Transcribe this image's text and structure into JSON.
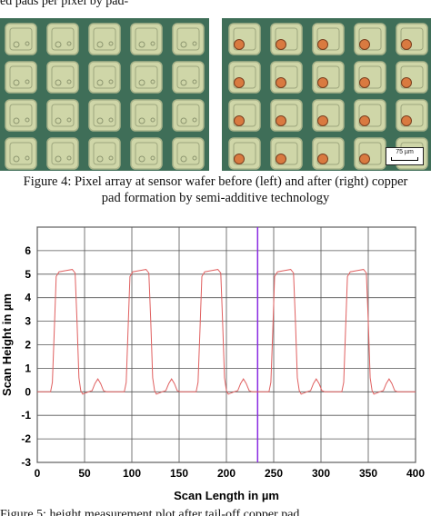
{
  "top_text": "ed pads per pixel by pad-",
  "figure4": {
    "caption_line1": "Figure 4: Pixel array at sensor wafer before (left) and after (right) copper",
    "caption_line2": "pad formation by semi-additive technology",
    "scale_bar_label": "75 µm",
    "colors": {
      "substrate": "#3f6e58",
      "pixel_fill": "#cfd6a8",
      "copper": "#d97a40"
    }
  },
  "figure5_caption_fragment": "Figure 5: height measurement plot after tail-off copper pad",
  "chart_data": {
    "type": "line",
    "xlabel": "Scan Length in µm",
    "ylabel": "Scan Height in µm",
    "xlim": [
      0,
      400
    ],
    "ylim": [
      -3,
      7
    ],
    "x_ticks": [
      0,
      50,
      100,
      150,
      200,
      250,
      300,
      350,
      400
    ],
    "y_ticks": [
      -3,
      -2,
      -1,
      0,
      1,
      2,
      3,
      4,
      5,
      6
    ],
    "grid": true,
    "line_color": "#e06060",
    "marker_line": {
      "x": 233,
      "color": "#8a2be2"
    },
    "series": [
      {
        "values": [
          [
            0,
            0
          ],
          [
            14,
            0
          ],
          [
            16,
            0.4
          ],
          [
            18,
            2.6
          ],
          [
            20,
            4.9
          ],
          [
            23,
            5.1
          ],
          [
            30,
            5.15
          ],
          [
            37,
            5.2
          ],
          [
            40,
            5.05
          ],
          [
            42,
            3.0
          ],
          [
            44,
            0.6
          ],
          [
            46,
            0.05
          ],
          [
            48,
            -0.1
          ],
          [
            54,
            0
          ],
          [
            58,
            0.05
          ],
          [
            61,
            0.35
          ],
          [
            64,
            0.55
          ],
          [
            67,
            0.35
          ],
          [
            70,
            0.05
          ],
          [
            73,
            0
          ],
          [
            92,
            0
          ],
          [
            94,
            0.4
          ],
          [
            96,
            2.6
          ],
          [
            98,
            4.9
          ],
          [
            101,
            5.1
          ],
          [
            108,
            5.15
          ],
          [
            115,
            5.2
          ],
          [
            118,
            5.05
          ],
          [
            120,
            3.0
          ],
          [
            122,
            0.6
          ],
          [
            124,
            0.05
          ],
          [
            126,
            -0.1
          ],
          [
            132,
            0
          ],
          [
            136,
            0.05
          ],
          [
            139,
            0.35
          ],
          [
            142,
            0.55
          ],
          [
            145,
            0.35
          ],
          [
            148,
            0.05
          ],
          [
            151,
            0
          ],
          [
            168,
            0
          ],
          [
            170,
            0.4
          ],
          [
            172,
            2.6
          ],
          [
            174,
            4.9
          ],
          [
            177,
            5.1
          ],
          [
            184,
            5.15
          ],
          [
            191,
            5.2
          ],
          [
            194,
            5.05
          ],
          [
            196,
            3.0
          ],
          [
            198,
            0.6
          ],
          [
            200,
            0.05
          ],
          [
            202,
            -0.1
          ],
          [
            208,
            0
          ],
          [
            212,
            0.05
          ],
          [
            215,
            0.35
          ],
          [
            218,
            0.55
          ],
          [
            221,
            0.35
          ],
          [
            224,
            0.05
          ],
          [
            227,
            0
          ],
          [
            245,
            0
          ],
          [
            247,
            0.4
          ],
          [
            249,
            2.6
          ],
          [
            251,
            4.9
          ],
          [
            254,
            5.1
          ],
          [
            261,
            5.15
          ],
          [
            268,
            5.2
          ],
          [
            271,
            5.05
          ],
          [
            273,
            3.0
          ],
          [
            275,
            0.6
          ],
          [
            277,
            0.05
          ],
          [
            279,
            -0.1
          ],
          [
            285,
            0
          ],
          [
            289,
            0.05
          ],
          [
            292,
            0.35
          ],
          [
            295,
            0.55
          ],
          [
            298,
            0.35
          ],
          [
            301,
            0.05
          ],
          [
            304,
            0
          ],
          [
            322,
            0
          ],
          [
            324,
            0.4
          ],
          [
            326,
            2.6
          ],
          [
            328,
            4.9
          ],
          [
            331,
            5.1
          ],
          [
            338,
            5.15
          ],
          [
            345,
            5.2
          ],
          [
            348,
            5.05
          ],
          [
            350,
            3.0
          ],
          [
            352,
            0.6
          ],
          [
            354,
            0.05
          ],
          [
            356,
            -0.1
          ],
          [
            362,
            0
          ],
          [
            366,
            0.05
          ],
          [
            369,
            0.35
          ],
          [
            372,
            0.55
          ],
          [
            375,
            0.35
          ],
          [
            378,
            0.05
          ],
          [
            381,
            0
          ],
          [
            400,
            0
          ]
        ]
      }
    ]
  }
}
